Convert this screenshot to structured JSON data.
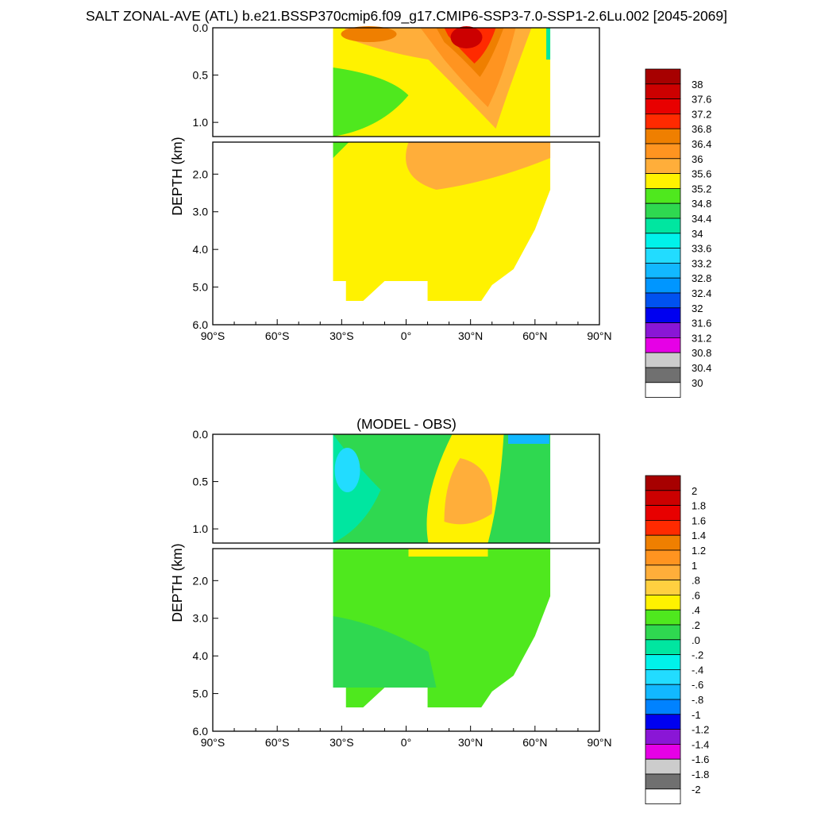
{
  "page": {
    "title": "SALT ZONAL-AVE (ATL) b.e21.BSSP370cmip6.f09_g17.CMIP6-SSP3-7.0-SSP1-2.6Lu.002 [2045-2069]"
  },
  "chart_data": [
    {
      "type": "heatmap",
      "title": "",
      "ylabel": "DEPTH (km)",
      "xlabel": "",
      "x_ticks": [
        "90°S",
        "60°S",
        "30°S",
        "0°",
        "30°N",
        "60°N",
        "90°N"
      ],
      "y_ticks_upper": [
        "0.0",
        "0.5",
        "1.0"
      ],
      "y_ticks_lower": [
        "2.0",
        "3.0",
        "4.0",
        "5.0",
        "6.0"
      ],
      "xlim": [
        -90,
        90
      ],
      "ylim": [
        6.0,
        0.0
      ],
      "colorbar_labels": [
        "38",
        "37.6",
        "37.2",
        "36.8",
        "36.4",
        "36",
        "35.6",
        "35.2",
        "34.8",
        "34.4",
        "34",
        "33.6",
        "33.2",
        "32.8",
        "32.4",
        "32",
        "31.6",
        "31.2",
        "30.8",
        "30.4",
        "30"
      ],
      "colorbar_colors": [
        "#a70000",
        "#cc0000",
        "#e80000",
        "#ff2a00",
        "#ef7f00",
        "#ff9420",
        "#ffae3a",
        "#fff200",
        "#4fe81e",
        "#2fd850",
        "#00e6a0",
        "#00f2ea",
        "#22dcff",
        "#12b8ff",
        "#0096ff",
        "#0052f0",
        "#0000f0",
        "#8a16d6",
        "#e600e6",
        "#cccccc",
        "#707070",
        "#ffffff"
      ]
    },
    {
      "type": "heatmap",
      "title": "(MODEL - OBS)",
      "ylabel": "DEPTH (km)",
      "xlabel": "",
      "x_ticks": [
        "90°S",
        "60°S",
        "30°S",
        "0°",
        "30°N",
        "60°N",
        "90°N"
      ],
      "y_ticks_upper": [
        "0.0",
        "0.5",
        "1.0"
      ],
      "y_ticks_lower": [
        "2.0",
        "3.0",
        "4.0",
        "5.0",
        "6.0"
      ],
      "xlim": [
        -90,
        90
      ],
      "ylim": [
        6.0,
        0.0
      ],
      "colorbar_labels": [
        "2",
        "1.8",
        "1.6",
        "1.4",
        "1.2",
        "1",
        ".8",
        ".6",
        ".4",
        ".2",
        ".0",
        "-.2",
        "-.4",
        "-.6",
        "-.8",
        "-1",
        "-1.2",
        "-1.4",
        "-1.6",
        "-1.8",
        "-2"
      ],
      "colorbar_colors": [
        "#a70000",
        "#cc0000",
        "#e80000",
        "#ff2a00",
        "#ef7f00",
        "#ff9420",
        "#ffae3a",
        "#ffd040",
        "#fff200",
        "#4fe81e",
        "#2fd850",
        "#00e6a0",
        "#00f2ea",
        "#22dcff",
        "#12b8ff",
        "#0082ff",
        "#0000f0",
        "#8a16d6",
        "#e600e6",
        "#cccccc",
        "#707070",
        "#ffffff"
      ]
    }
  ]
}
